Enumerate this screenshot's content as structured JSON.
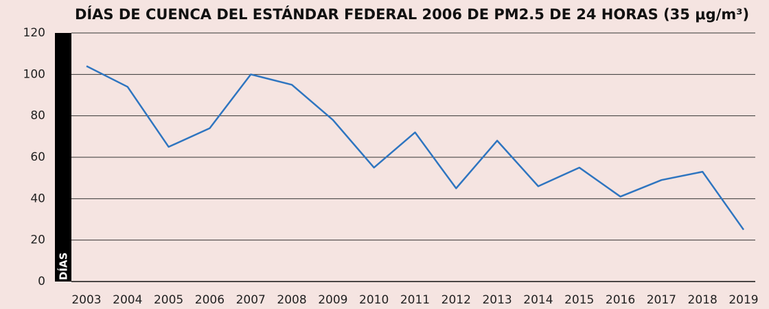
{
  "chart_data": {
    "type": "line",
    "title": "DÍAS DE CUENCA DEL ESTÁNDAR FEDERAL 2006 DE PM2.5 DE 24 HORAS (35 μg/m³)",
    "y_label": "DÍAS",
    "categories": [
      "2003",
      "2004",
      "2005",
      "2006",
      "2007",
      "2008",
      "2009",
      "2010",
      "2011",
      "2012",
      "2013",
      "2014",
      "2015",
      "2016",
      "2017",
      "2018",
      "2019"
    ],
    "values": [
      104,
      94,
      65,
      74,
      100,
      95,
      78,
      55,
      72,
      45,
      68,
      46,
      55,
      41,
      49,
      53,
      25
    ],
    "color": "#2e75c0",
    "ylim": [
      0,
      120
    ],
    "yticks": [
      0,
      20,
      40,
      60,
      80,
      100,
      120
    ],
    "grid": true
  }
}
